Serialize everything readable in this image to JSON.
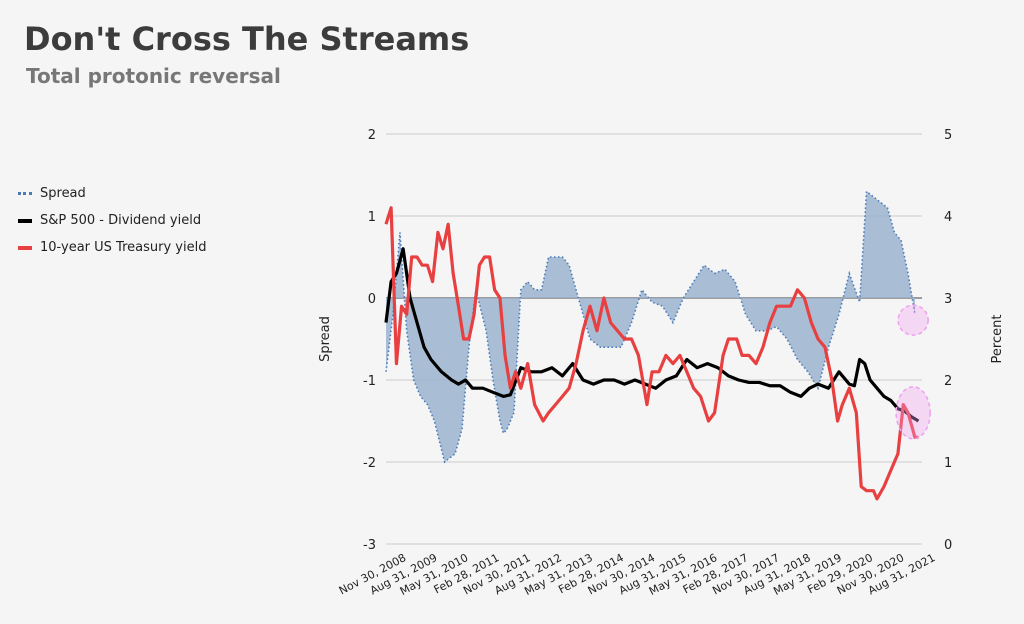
{
  "title": "Don't Cross The Streams",
  "subtitle": "Total protonic reversal",
  "legend": [
    {
      "label": "Spread",
      "color": "#4a7ab8",
      "style": "dotted"
    },
    {
      "label": "S&P 500 - Dividend yield",
      "color": "#000000",
      "style": "solid"
    },
    {
      "label": "10-year US Treasury yield",
      "color": "#e84040",
      "style": "solid"
    }
  ],
  "chart_data": {
    "type": "line",
    "ylabel": "Spread",
    "y2label": "Percent",
    "ylim": [
      -3,
      2
    ],
    "y2lim": [
      0,
      5
    ],
    "yticks": [
      -3,
      -2,
      -1,
      0,
      1,
      2
    ],
    "y2ticks": [
      0,
      1,
      2,
      3,
      4,
      5
    ],
    "grid": true,
    "legend_position": "left",
    "xlim": [
      "2008-10-01",
      "2021-09-01"
    ],
    "x_tick_labels": [
      "Nov 30, 2008",
      "Aug 31, 2009",
      "May 31, 2010",
      "Feb 28, 2011",
      "Nov 30, 2011",
      "Aug 31, 2012",
      "May 31, 2013",
      "Feb 28, 2014",
      "Nov 30, 2014",
      "Aug 31, 2015",
      "May 31, 2016",
      "Feb 28, 2017",
      "Nov 30, 2017",
      "Aug 31, 2018",
      "May 31, 2019",
      "Feb 29, 2020",
      "Nov 30, 2020",
      "Aug 31, 2021"
    ],
    "x_tick_dates": [
      "2008-11-30",
      "2009-08-31",
      "2010-05-31",
      "2011-02-28",
      "2011-11-30",
      "2012-08-31",
      "2013-05-31",
      "2014-02-28",
      "2014-11-30",
      "2015-08-31",
      "2016-05-31",
      "2017-02-28",
      "2017-11-30",
      "2018-08-31",
      "2019-05-31",
      "2020-02-29",
      "2020-11-30",
      "2021-08-31"
    ],
    "series": [
      {
        "name": "Spread",
        "axis": "left",
        "color": "#4a7ab8",
        "fill": "#9bb4cf",
        "x": [
          "2008-10-01",
          "2008-12-01",
          "2009-02-01",
          "2009-04-01",
          "2009-06-01",
          "2009-08-01",
          "2009-10-01",
          "2009-12-01",
          "2010-03-01",
          "2010-06-01",
          "2010-08-01",
          "2010-10-01",
          "2010-12-01",
          "2011-03-01",
          "2011-05-01",
          "2011-07-01",
          "2011-08-01",
          "2011-09-01",
          "2011-11-01",
          "2012-01-01",
          "2012-03-01",
          "2012-05-01",
          "2012-07-01",
          "2012-09-01",
          "2012-11-01",
          "2013-01-01",
          "2013-03-01",
          "2013-05-01",
          "2013-07-01",
          "2013-09-01",
          "2013-12-01",
          "2014-03-01",
          "2014-06-01",
          "2014-09-01",
          "2014-12-01",
          "2015-03-01",
          "2015-06-01",
          "2015-09-01",
          "2015-12-01",
          "2016-03-01",
          "2016-06-01",
          "2016-09-01",
          "2016-12-01",
          "2017-03-01",
          "2017-06-01",
          "2017-09-01",
          "2017-12-01",
          "2018-03-01",
          "2018-06-01",
          "2018-09-01",
          "2018-12-01",
          "2019-03-01",
          "2019-06-01",
          "2019-09-01",
          "2019-12-01",
          "2020-03-01",
          "2020-05-01",
          "2020-08-01",
          "2020-11-01",
          "2021-01-01",
          "2021-03-01",
          "2021-05-01",
          "2021-07-01"
        ],
        "y": [
          -0.9,
          -0.2,
          0.8,
          -0.4,
          -1.0,
          -1.2,
          -1.3,
          -1.5,
          -2.0,
          -1.9,
          -1.6,
          -0.6,
          0.1,
          -0.4,
          -1.0,
          -1.5,
          -1.65,
          -1.6,
          -1.4,
          0.1,
          0.2,
          0.1,
          0.1,
          0.5,
          0.5,
          0.5,
          0.4,
          0.1,
          -0.2,
          -0.5,
          -0.6,
          -0.6,
          -0.6,
          -0.3,
          0.1,
          -0.05,
          -0.1,
          -0.3,
          0.0,
          0.2,
          0.4,
          0.3,
          0.35,
          0.2,
          -0.2,
          -0.4,
          -0.4,
          -0.35,
          -0.5,
          -0.75,
          -0.9,
          -1.1,
          -0.6,
          -0.2,
          0.3,
          -0.05,
          1.3,
          1.2,
          1.1,
          0.8,
          0.7,
          0.3,
          -0.2
        ]
      },
      {
        "name": "S&P 500 - Dividend yield",
        "axis": "right",
        "color": "#000000",
        "x": [
          "2008-10-01",
          "2008-11-15",
          "2009-01-01",
          "2009-03-01",
          "2009-05-01",
          "2009-07-01",
          "2009-09-01",
          "2009-11-01",
          "2010-02-01",
          "2010-05-01",
          "2010-07-01",
          "2010-09-01",
          "2010-11-01",
          "2011-02-01",
          "2011-05-01",
          "2011-08-01",
          "2011-10-01",
          "2012-01-01",
          "2012-04-01",
          "2012-07-01",
          "2012-10-01",
          "2013-01-01",
          "2013-04-01",
          "2013-07-01",
          "2013-10-01",
          "2014-01-01",
          "2014-04-01",
          "2014-07-01",
          "2014-10-01",
          "2015-01-01",
          "2015-04-01",
          "2015-07-01",
          "2015-10-01",
          "2016-01-01",
          "2016-04-01",
          "2016-07-01",
          "2016-10-01",
          "2017-01-01",
          "2017-04-01",
          "2017-07-01",
          "2017-10-01",
          "2018-01-01",
          "2018-04-01",
          "2018-07-01",
          "2018-10-01",
          "2018-12-15",
          "2019-03-01",
          "2019-06-01",
          "2019-09-01",
          "2019-12-01",
          "2020-01-15",
          "2020-03-01",
          "2020-04-15",
          "2020-06-01",
          "2020-08-01",
          "2020-10-01",
          "2020-12-01",
          "2021-02-01",
          "2021-04-01",
          "2021-06-01",
          "2021-08-01"
        ],
        "y": [
          2.7,
          3.2,
          3.3,
          3.6,
          3.0,
          2.7,
          2.4,
          2.25,
          2.1,
          2.0,
          1.95,
          2.0,
          1.9,
          1.9,
          1.85,
          1.8,
          1.82,
          2.15,
          2.1,
          2.1,
          2.15,
          2.05,
          2.2,
          2.0,
          1.95,
          2.0,
          2.0,
          1.95,
          2.0,
          1.95,
          1.9,
          2.0,
          2.05,
          2.25,
          2.15,
          2.2,
          2.15,
          2.05,
          2.0,
          1.97,
          1.97,
          1.93,
          1.93,
          1.85,
          1.8,
          1.9,
          1.95,
          1.9,
          2.1,
          1.95,
          1.93,
          2.25,
          2.2,
          2.0,
          1.9,
          1.8,
          1.75,
          1.65,
          1.62,
          1.55,
          1.5
        ]
      },
      {
        "name": "10-year US Treasury yield",
        "axis": "right",
        "color": "#e84040",
        "x": [
          "2008-10-01",
          "2008-11-15",
          "2009-01-01",
          "2009-02-15",
          "2009-04-01",
          "2009-05-15",
          "2009-07-01",
          "2009-08-15",
          "2009-10-01",
          "2009-11-15",
          "2010-01-01",
          "2010-02-15",
          "2010-04-01",
          "2010-05-15",
          "2010-07-01",
          "2010-08-15",
          "2010-10-01",
          "2010-11-15",
          "2011-01-01",
          "2011-02-15",
          "2011-04-01",
          "2011-05-15",
          "2011-07-01",
          "2011-08-15",
          "2011-10-01",
          "2011-11-15",
          "2012-01-01",
          "2012-03-01",
          "2012-05-01",
          "2012-07-15",
          "2012-09-01",
          "2012-11-01",
          "2013-01-01",
          "2013-03-01",
          "2013-05-01",
          "2013-07-01",
          "2013-09-01",
          "2013-11-01",
          "2014-01-01",
          "2014-03-01",
          "2014-05-01",
          "2014-07-01",
          "2014-09-01",
          "2014-11-01",
          "2015-01-15",
          "2015-03-01",
          "2015-05-01",
          "2015-07-01",
          "2015-09-01",
          "2015-11-01",
          "2016-01-01",
          "2016-03-01",
          "2016-05-01",
          "2016-07-10",
          "2016-09-01",
          "2016-11-15",
          "2017-01-01",
          "2017-03-15",
          "2017-05-01",
          "2017-07-01",
          "2017-09-01",
          "2017-11-01",
          "2018-01-01",
          "2018-03-01",
          "2018-05-01",
          "2018-07-01",
          "2018-09-01",
          "2018-11-01",
          "2019-01-01",
          "2019-03-01",
          "2019-05-01",
          "2019-07-01",
          "2019-08-20",
          "2019-10-01",
          "2019-12-01",
          "2020-02-01",
          "2020-03-15",
          "2020-05-01",
          "2020-07-01",
          "2020-08-01",
          "2020-10-01",
          "2020-12-01",
          "2021-02-01",
          "2021-03-20",
          "2021-05-01",
          "2021-07-01",
          "2021-08-01"
        ],
        "y": [
          3.9,
          4.1,
          2.2,
          2.9,
          2.8,
          3.5,
          3.5,
          3.4,
          3.4,
          3.2,
          3.8,
          3.6,
          3.9,
          3.3,
          2.9,
          2.5,
          2.5,
          2.8,
          3.4,
          3.5,
          3.5,
          3.1,
          3.0,
          2.3,
          1.9,
          2.1,
          1.9,
          2.2,
          1.7,
          1.5,
          1.6,
          1.7,
          1.8,
          1.9,
          2.2,
          2.6,
          2.9,
          2.6,
          3.0,
          2.7,
          2.6,
          2.5,
          2.5,
          2.3,
          1.7,
          2.1,
          2.1,
          2.3,
          2.2,
          2.3,
          2.1,
          1.9,
          1.8,
          1.5,
          1.6,
          2.3,
          2.5,
          2.5,
          2.3,
          2.3,
          2.2,
          2.4,
          2.7,
          2.9,
          2.9,
          2.9,
          3.1,
          3.0,
          2.7,
          2.5,
          2.4,
          2.0,
          1.5,
          1.7,
          1.9,
          1.6,
          0.7,
          0.65,
          0.65,
          0.55,
          0.7,
          0.9,
          1.1,
          1.7,
          1.6,
          1.3,
          1.3
        ]
      }
    ],
    "annotations": [
      {
        "type": "ellipse",
        "name": "highlight-spread",
        "axis": "left",
        "x": "2021-06-15",
        "y": -0.27,
        "color": "#f0a0f0"
      },
      {
        "type": "ellipse",
        "name": "highlight-crossover",
        "axis": "right",
        "x": "2021-06-15",
        "y": 1.6,
        "color": "#f0a0f0"
      }
    ]
  }
}
